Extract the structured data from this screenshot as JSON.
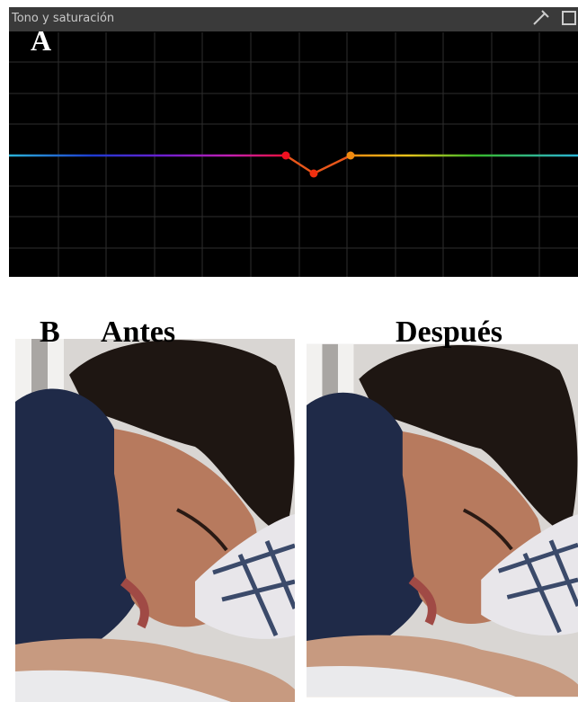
{
  "panel": {
    "title": "Tono y saturación",
    "label": "A"
  },
  "comparison": {
    "label": "B",
    "before": "Antes",
    "after": "Después"
  }
}
